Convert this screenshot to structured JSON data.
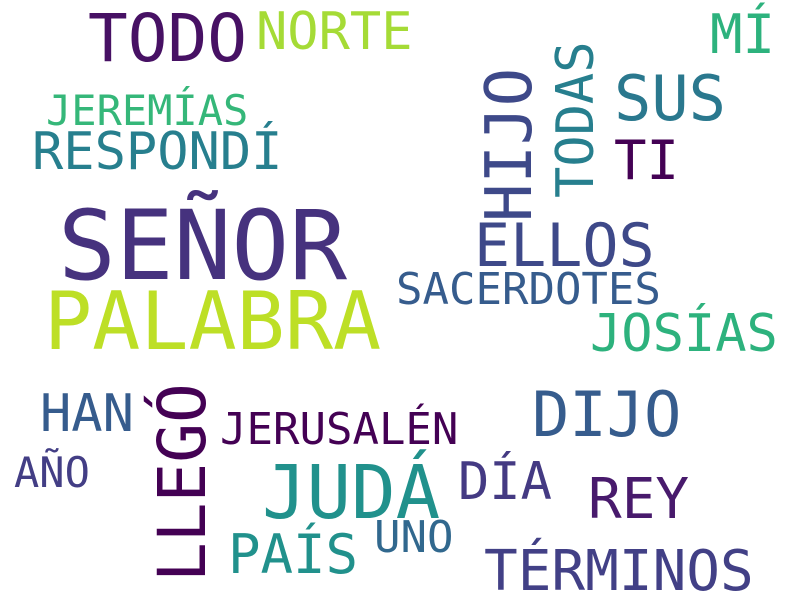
{
  "words": [
    {
      "text": "SEÑOR",
      "color": "#46327e"
    },
    {
      "text": "PALABRA",
      "color": "#bddf26"
    },
    {
      "text": "TODO",
      "color": "#471164"
    },
    {
      "text": "NORTE",
      "color": "#a5db36"
    },
    {
      "text": "MÍ",
      "color": "#2db27d"
    },
    {
      "text": "TODAS",
      "color": "#277f8e"
    },
    {
      "text": "SUS",
      "color": "#2a788e"
    },
    {
      "text": "HIJO",
      "color": "#3e4989"
    },
    {
      "text": "JEREMÍAS",
      "color": "#35b779"
    },
    {
      "text": "RESPONDÍ",
      "color": "#277f8e"
    },
    {
      "text": "TI",
      "color": "#440154"
    },
    {
      "text": "ELLOS",
      "color": "#3e4989"
    },
    {
      "text": "SACERDOTES",
      "color": "#365c8d"
    },
    {
      "text": "JOSÍAS",
      "color": "#2db27d"
    },
    {
      "text": "HAN",
      "color": "#365c8d"
    },
    {
      "text": "LLEGÓ",
      "color": "#440154"
    },
    {
      "text": "JERUSALÉN",
      "color": "#440154"
    },
    {
      "text": "DIJO",
      "color": "#365c8d"
    },
    {
      "text": "AÑO",
      "color": "#433e85"
    },
    {
      "text": "JUDÁ",
      "color": "#21918c"
    },
    {
      "text": "DÍA",
      "color": "#443a83"
    },
    {
      "text": "REY",
      "color": "#481a6c"
    },
    {
      "text": "UNO",
      "color": "#31688e"
    },
    {
      "text": "PAÍS",
      "color": "#21918c"
    },
    {
      "text": "TÉRMINOS",
      "color": "#424086"
    }
  ]
}
